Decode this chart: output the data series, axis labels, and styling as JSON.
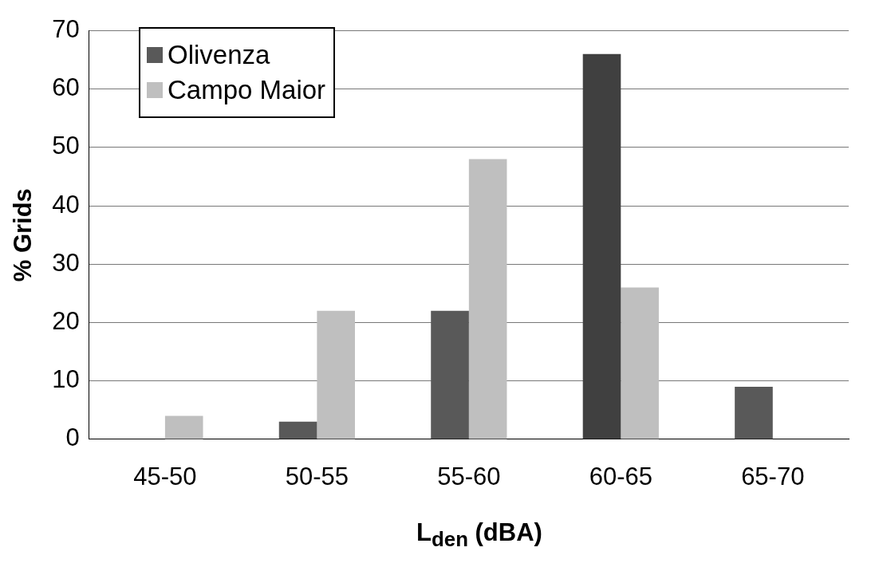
{
  "chart_data": {
    "type": "bar",
    "xlabel": "L$_{den}$ (dBA)",
    "ylabel": "% Grids",
    "categories": [
      "45-50",
      "50-55",
      "55-60",
      "60-65",
      "65-70"
    ],
    "series": [
      {
        "name": "Olivenza",
        "color": "#595959",
        "colors": [
          "#595959",
          "#595959",
          "#595959",
          "#404040",
          "#595959"
        ],
        "values": [
          0,
          3,
          22,
          66,
          9
        ]
      },
      {
        "name": "Campo Maior",
        "color": "#bfbfbf",
        "values": [
          4,
          22,
          48,
          26,
          0
        ]
      }
    ],
    "ylim": [
      0,
      70
    ],
    "yticks": [
      0,
      10,
      20,
      30,
      40,
      50,
      60,
      70
    ],
    "grid": "y",
    "legend": "top left"
  }
}
